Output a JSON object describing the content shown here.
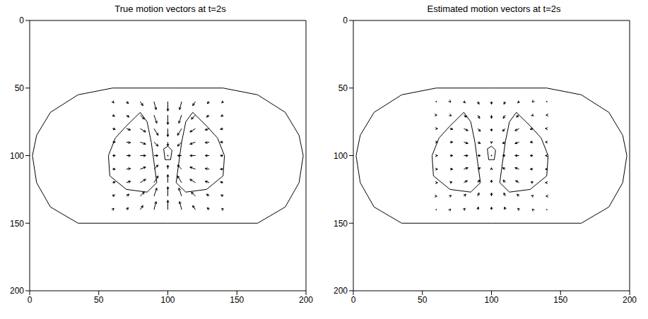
{
  "chart_data": [
    {
      "type": "quiver",
      "title": "True motion vectors at t=2s",
      "color": "#000000",
      "grid": false,
      "xlim": [
        0,
        200
      ],
      "ylim": [
        200,
        0
      ],
      "xticks": [
        0,
        50,
        100,
        150,
        200
      ],
      "yticks": [
        0,
        50,
        100,
        150,
        200
      ],
      "grid_x": [
        60,
        70,
        80,
        90,
        100,
        110,
        120,
        130,
        140
      ],
      "grid_y": [
        60,
        70,
        80,
        90,
        100,
        110,
        120,
        130,
        140
      ],
      "u": [
        [
          1,
          1.5,
          2,
          1.5,
          0,
          -1.5,
          -2,
          -1.5,
          -1
        ],
        [
          1.5,
          2,
          3,
          2,
          0,
          -2,
          -3,
          -2,
          -1.5
        ],
        [
          2,
          3,
          4,
          3,
          0,
          -3,
          -4,
          -3,
          -2
        ],
        [
          2,
          3,
          4,
          3,
          0,
          -3,
          -4,
          -3,
          -2
        ],
        [
          2,
          3,
          4,
          3,
          0,
          -3,
          -4,
          -3,
          -2
        ],
        [
          2,
          3,
          4,
          3,
          0,
          -3,
          -4,
          -3,
          -2
        ],
        [
          2,
          3,
          4,
          3,
          0,
          -3,
          -4,
          -3,
          -2
        ],
        [
          1.5,
          2,
          3,
          2,
          0,
          -2,
          -3,
          -2,
          -1.5
        ],
        [
          1,
          1.5,
          2,
          1.5,
          0,
          -1.5,
          -2,
          -1.5,
          -1
        ]
      ],
      "v": [
        [
          1,
          1.5,
          3,
          6,
          7,
          6,
          3,
          1.5,
          1
        ],
        [
          1,
          1.5,
          3,
          6,
          7,
          6,
          3,
          1.5,
          1
        ],
        [
          0.5,
          1,
          2.5,
          5,
          6,
          5,
          2.5,
          1,
          0.5
        ],
        [
          0,
          0.5,
          1.5,
          3,
          3,
          3,
          1.5,
          0.5,
          0
        ],
        [
          0,
          0,
          0,
          0,
          0,
          0,
          0,
          0,
          0
        ],
        [
          0,
          -0.5,
          -1.5,
          -3,
          -3,
          -3,
          -1.5,
          -0.5,
          0
        ],
        [
          -0.5,
          -1,
          -2.5,
          -5,
          -6,
          -5,
          -2.5,
          -1,
          -0.5
        ],
        [
          -1,
          -1.5,
          -3,
          -6,
          -7,
          -6,
          -3,
          -1.5,
          -1
        ],
        [
          -1,
          -1.5,
          -3,
          -6,
          -7,
          -6,
          -3,
          -1.5,
          -1
        ]
      ],
      "contours": [
        [
          [
            100,
            50
          ],
          [
            140,
            50
          ],
          [
            165,
            55
          ],
          [
            185,
            68
          ],
          [
            195,
            85
          ],
          [
            198,
            100
          ],
          [
            195,
            120
          ],
          [
            185,
            138
          ],
          [
            165,
            150
          ],
          [
            100,
            150
          ],
          [
            35,
            150
          ],
          [
            15,
            138
          ],
          [
            5,
            120
          ],
          [
            2,
            100
          ],
          [
            5,
            85
          ],
          [
            15,
            68
          ],
          [
            35,
            55
          ],
          [
            60,
            50
          ],
          [
            100,
            50
          ]
        ],
        [
          [
            80,
            68
          ],
          [
            85,
            75
          ],
          [
            88,
            90
          ],
          [
            90,
            105
          ],
          [
            92,
            120
          ],
          [
            85,
            127
          ],
          [
            70,
            125
          ],
          [
            58,
            115
          ],
          [
            57,
            100
          ],
          [
            62,
            87
          ],
          [
            70,
            78
          ],
          [
            80,
            68
          ]
        ],
        [
          [
            118,
            68
          ],
          [
            113,
            75
          ],
          [
            110,
            90
          ],
          [
            108,
            105
          ],
          [
            106,
            120
          ],
          [
            113,
            127
          ],
          [
            128,
            125
          ],
          [
            140,
            115
          ],
          [
            141,
            100
          ],
          [
            136,
            87
          ],
          [
            128,
            78
          ],
          [
            118,
            68
          ]
        ],
        [
          [
            97,
            95
          ],
          [
            100,
            93
          ],
          [
            103,
            96
          ],
          [
            102,
            103
          ],
          [
            98,
            103
          ],
          [
            97,
            95
          ]
        ]
      ]
    },
    {
      "type": "quiver",
      "title": "Estimated motion vectors at t=2s",
      "color": "#000000",
      "grid": false,
      "xlim": [
        0,
        200
      ],
      "ylim": [
        200,
        0
      ],
      "xticks": [
        0,
        50,
        100,
        150,
        200
      ],
      "yticks": [
        0,
        50,
        100,
        150,
        200
      ],
      "grid_x": [
        60,
        70,
        80,
        90,
        100,
        110,
        120,
        130,
        140
      ],
      "grid_y": [
        60,
        70,
        80,
        90,
        100,
        110,
        120,
        130,
        140
      ],
      "u": [
        [
          0,
          0.5,
          1,
          1,
          0,
          -1,
          -1,
          -0.5,
          0
        ],
        [
          0.5,
          1,
          2,
          1.5,
          0,
          -1.5,
          -2,
          -1,
          -0.5
        ],
        [
          1,
          2,
          3,
          2,
          0,
          -2,
          -3,
          -2,
          -1
        ],
        [
          1,
          2,
          3,
          2,
          0,
          -2,
          -3,
          -2,
          -1
        ],
        [
          1,
          2,
          3,
          2,
          0,
          -2,
          -3,
          -2,
          -1
        ],
        [
          1,
          2,
          3,
          2,
          0,
          -2,
          -3,
          -2,
          -1
        ],
        [
          1,
          1.5,
          2.5,
          1.5,
          0,
          -1.5,
          -2.5,
          -1.5,
          -1
        ],
        [
          0.5,
          1,
          1.5,
          1,
          0,
          -1,
          -1.5,
          -1,
          -0.5
        ],
        [
          0,
          0.5,
          1,
          0.5,
          0,
          -0.5,
          -1,
          -0.5,
          0
        ]
      ],
      "v": [
        [
          0,
          0.5,
          1,
          2,
          2,
          2,
          1,
          0.5,
          0
        ],
        [
          0,
          0.5,
          1.5,
          2.5,
          2.5,
          2.5,
          1.5,
          0.5,
          0
        ],
        [
          0,
          0.5,
          1.5,
          2,
          2,
          2,
          1.5,
          0.5,
          0
        ],
        [
          0,
          0,
          1,
          1,
          1,
          1,
          1,
          0,
          0
        ],
        [
          0,
          0,
          0,
          0,
          0,
          0,
          0,
          0,
          0
        ],
        [
          0,
          0,
          -1,
          -1,
          -1,
          -1,
          -1,
          0,
          0
        ],
        [
          0,
          -0.5,
          -1.5,
          -2,
          -2,
          -2,
          -1.5,
          -0.5,
          0
        ],
        [
          0,
          -0.5,
          -1.5,
          -2.5,
          -2.5,
          -2.5,
          -1.5,
          -0.5,
          0
        ],
        [
          0,
          -0.5,
          -1,
          -2,
          -2,
          -2,
          -1,
          -0.5,
          0
        ]
      ],
      "contours": [
        [
          [
            100,
            50
          ],
          [
            140,
            50
          ],
          [
            165,
            55
          ],
          [
            185,
            68
          ],
          [
            195,
            85
          ],
          [
            198,
            100
          ],
          [
            195,
            120
          ],
          [
            185,
            138
          ],
          [
            165,
            150
          ],
          [
            100,
            150
          ],
          [
            35,
            150
          ],
          [
            15,
            138
          ],
          [
            5,
            120
          ],
          [
            2,
            100
          ],
          [
            5,
            85
          ],
          [
            15,
            68
          ],
          [
            35,
            55
          ],
          [
            60,
            50
          ],
          [
            100,
            50
          ]
        ],
        [
          [
            80,
            68
          ],
          [
            85,
            75
          ],
          [
            88,
            90
          ],
          [
            90,
            105
          ],
          [
            92,
            120
          ],
          [
            85,
            127
          ],
          [
            70,
            125
          ],
          [
            58,
            115
          ],
          [
            57,
            100
          ],
          [
            62,
            87
          ],
          [
            70,
            78
          ],
          [
            80,
            68
          ]
        ],
        [
          [
            118,
            68
          ],
          [
            113,
            75
          ],
          [
            110,
            90
          ],
          [
            108,
            105
          ],
          [
            106,
            120
          ],
          [
            113,
            127
          ],
          [
            128,
            125
          ],
          [
            140,
            115
          ],
          [
            141,
            100
          ],
          [
            136,
            87
          ],
          [
            128,
            78
          ],
          [
            118,
            68
          ]
        ],
        [
          [
            97,
            95
          ],
          [
            100,
            93
          ],
          [
            103,
            96
          ],
          [
            102,
            103
          ],
          [
            98,
            103
          ],
          [
            97,
            95
          ]
        ]
      ]
    }
  ]
}
